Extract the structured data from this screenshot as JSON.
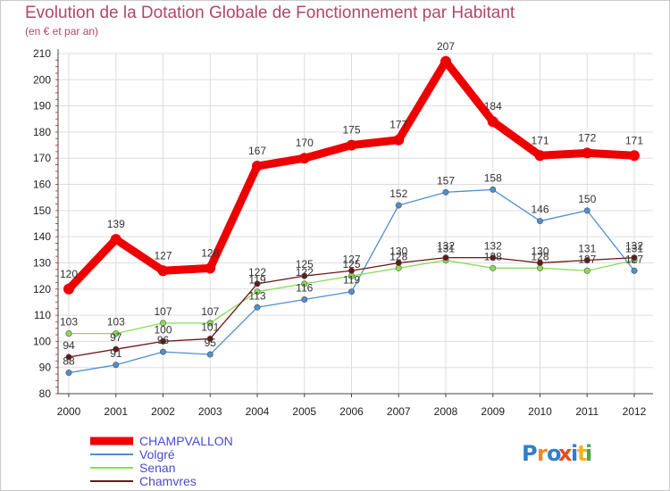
{
  "title": "Evolution de la Dotation Globale de Fonctionnement par Habitant",
  "subtitle": "(en € et par an)",
  "logo_text": "Proxiti",
  "chart_data": {
    "type": "line",
    "x": [
      "2000",
      "2001",
      "2002",
      "2003",
      "2004",
      "2005",
      "2006",
      "2007",
      "2008",
      "2009",
      "2010",
      "2011",
      "2012"
    ],
    "ylim": [
      80,
      210
    ],
    "yticks": [
      80,
      90,
      100,
      110,
      120,
      130,
      140,
      150,
      160,
      170,
      180,
      190,
      200,
      210
    ],
    "grid": true,
    "legend_position": "bottom-left",
    "series": [
      {
        "name": "CHAMPVALLON",
        "color": "#ee0000",
        "values": [
          120,
          139,
          127,
          128,
          167,
          170,
          175,
          177,
          207,
          184,
          171,
          172,
          171
        ]
      },
      {
        "name": "Volgré",
        "color": "#4f8fce",
        "values": [
          88,
          91,
          96,
          95,
          113,
          116,
          119,
          152,
          157,
          158,
          146,
          150,
          127
        ]
      },
      {
        "name": "Senan",
        "color": "#88dd55",
        "values": [
          103,
          103,
          107,
          107,
          119,
          122,
          125,
          128,
          131,
          128,
          128,
          127,
          131
        ]
      },
      {
        "name": "Chamvres",
        "color": "#6b1515",
        "values": [
          94,
          97,
          100,
          101,
          122,
          125,
          127,
          130,
          132,
          132,
          130,
          131,
          132
        ]
      }
    ]
  }
}
